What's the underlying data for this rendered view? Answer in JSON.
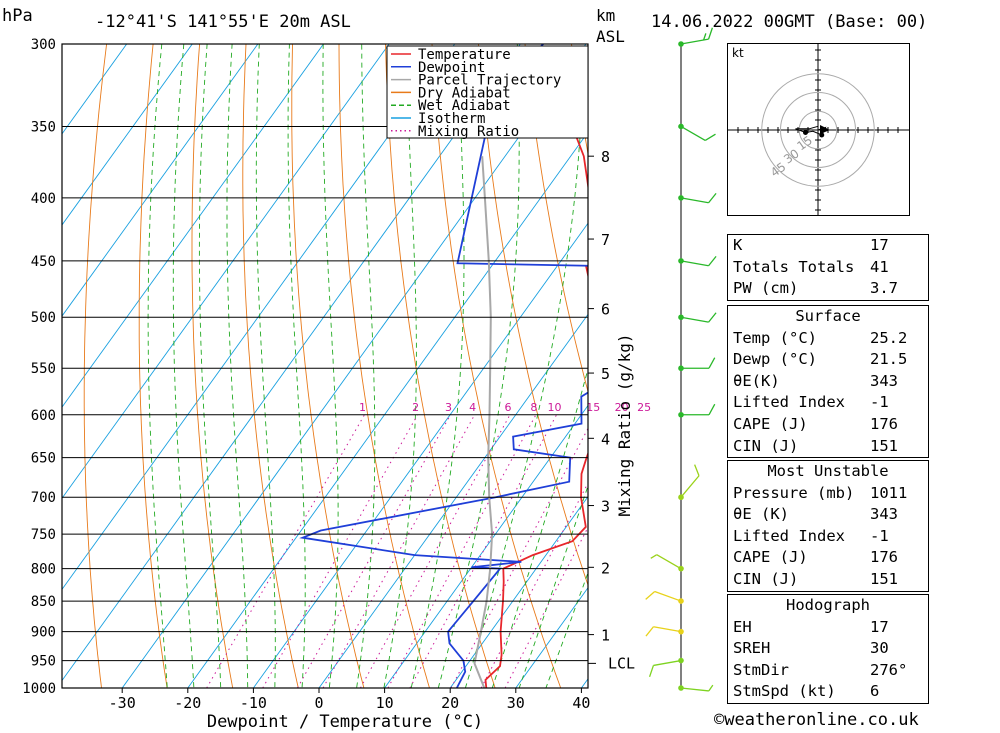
{
  "header": {
    "p_unit": "hPa",
    "location": "-12°41'S 141°55'E 20m ASL",
    "km_label": "km",
    "asl_label": "ASL",
    "datetime": "14.06.2022 00GMT (Base: 00)"
  },
  "legend": [
    "Temperature",
    "Dewpoint",
    "Parcel Trajectory",
    "Dry Adiabat",
    "Wet Adiabat",
    "Isotherm",
    "Mixing Ratio"
  ],
  "colors": {
    "temperature": "#e8262b",
    "dewpoint": "#1f3fd8",
    "parcel": "#a8a8a8",
    "dry_adiabat": "#e87a1a",
    "wet_adiabat": "#22aa22",
    "isotherm": "#19a0e0",
    "mixing_ratio": "#cc1a99"
  },
  "chart_data": {
    "type": "line",
    "title": "-12°41'S 141°55'E 20m ASL",
    "xlabel": "Dewpoint / Temperature (°C)",
    "ylabel": "hPa",
    "right_label": "Mixing Ratio (g/kg)",
    "x_ticks": [
      -30,
      -20,
      -10,
      0,
      10,
      20,
      30,
      40
    ],
    "p_ticks": [
      300,
      350,
      400,
      450,
      500,
      550,
      600,
      650,
      700,
      750,
      800,
      850,
      900,
      950,
      1000
    ],
    "km_ticks": [
      {
        "km": "1",
        "p": 905
      },
      {
        "km": "2",
        "p": 798
      },
      {
        "km": "3",
        "p": 711
      },
      {
        "km": "4",
        "p": 627
      },
      {
        "km": "5",
        "p": 555
      },
      {
        "km": "6",
        "p": 492
      },
      {
        "km": "7",
        "p": 432
      },
      {
        "km": "8",
        "p": 370
      }
    ],
    "lcl_label": "LCL",
    "lcl_p": 955,
    "mixing_ratio_labels": [
      "1",
      "2",
      "3",
      "4",
      "6",
      "8",
      "10",
      "15",
      "20",
      "25"
    ],
    "series": [
      {
        "name": "Temperature",
        "points": [
          [
            1000,
            25.5
          ],
          [
            985,
            24.5
          ],
          [
            960,
            25.2
          ],
          [
            940,
            24.2
          ],
          [
            900,
            21.5
          ],
          [
            850,
            18.5
          ],
          [
            820,
            16.5
          ],
          [
            800,
            15.0
          ],
          [
            780,
            18.0
          ],
          [
            760,
            22.5
          ],
          [
            740,
            23.0
          ],
          [
            700,
            19.0
          ],
          [
            670,
            16.5
          ],
          [
            650,
            15.5
          ],
          [
            620,
            14.2
          ],
          [
            600,
            13.0
          ],
          [
            580,
            10.5
          ],
          [
            550,
            6.5
          ],
          [
            500,
            1.0
          ],
          [
            470,
            -3.0
          ],
          [
            455,
            -5.5
          ],
          [
            450,
            -4.5
          ],
          [
            430,
            -7.5
          ],
          [
            400,
            -12.5
          ],
          [
            370,
            -18.0
          ],
          [
            350,
            -23.0
          ],
          [
            330,
            -22.5
          ],
          [
            300,
            -29.0
          ]
        ]
      },
      {
        "name": "Dewpoint",
        "points": [
          [
            1000,
            21.0
          ],
          [
            970,
            20.5
          ],
          [
            950,
            19.0
          ],
          [
            920,
            15.0
          ],
          [
            900,
            13.5
          ],
          [
            850,
            14.0
          ],
          [
            800,
            14.5
          ],
          [
            798,
            10.0
          ],
          [
            790,
            17.0
          ],
          [
            780,
            0.0
          ],
          [
            755,
            -19.0
          ],
          [
            745,
            -17.0
          ],
          [
            700,
            6.0
          ],
          [
            680,
            15.5
          ],
          [
            650,
            13.0
          ],
          [
            640,
            3.5
          ],
          [
            625,
            2.0
          ],
          [
            610,
            11.0
          ],
          [
            580,
            8.0
          ],
          [
            540,
            13.5
          ],
          [
            500,
            4.5
          ],
          [
            470,
            0.0
          ],
          [
            455,
            3.0
          ],
          [
            452,
            -25.5
          ],
          [
            350,
            -36.0
          ],
          [
            340,
            -39.0
          ],
          [
            300,
            -36.5
          ]
        ]
      },
      {
        "name": "Parcel Trajectory",
        "points": [
          [
            1000,
            25.2
          ],
          [
            955,
            21.0
          ],
          [
            900,
            18.5
          ],
          [
            850,
            16.0
          ],
          [
            800,
            13.0
          ],
          [
            750,
            9.5
          ],
          [
            700,
            5.0
          ],
          [
            650,
            0.5
          ],
          [
            600,
            -4.0
          ],
          [
            550,
            -9.0
          ],
          [
            500,
            -14.5
          ],
          [
            450,
            -21.0
          ],
          [
            400,
            -28.5
          ],
          [
            370,
            -33.5
          ]
        ]
      }
    ],
    "wind_barbs": [
      {
        "p": 1000,
        "dir": 276,
        "kt": 5
      },
      {
        "p": 950,
        "dir": 80,
        "kt": 10
      },
      {
        "p": 900,
        "dir": 100,
        "kt": 10
      },
      {
        "p": 850,
        "dir": 110,
        "kt": 10
      },
      {
        "p": 800,
        "dir": 120,
        "kt": 5
      },
      {
        "p": 700,
        "dir": 220,
        "kt": 10
      },
      {
        "p": 600,
        "dir": 270,
        "kt": 10
      },
      {
        "p": 550,
        "dir": 270,
        "kt": 10
      },
      {
        "p": 500,
        "dir": 280,
        "kt": 10
      },
      {
        "p": 450,
        "dir": 280,
        "kt": 10
      },
      {
        "p": 400,
        "dir": 280,
        "kt": 10
      },
      {
        "p": 350,
        "dir": 300,
        "kt": 10
      },
      {
        "p": 300,
        "dir": 260,
        "kt": 15
      }
    ],
    "hodograph": {
      "unit_label": "kt",
      "rings": [
        15,
        30,
        45
      ],
      "ring_labels": [
        "15",
        "30",
        "45"
      ],
      "trace": [
        [
          0,
          0
        ],
        [
          6,
          -2
        ],
        [
          3,
          4
        ],
        [
          -4,
          1
        ],
        [
          -10,
          2
        ],
        [
          -18,
          -1
        ],
        [
          -7,
          -1
        ],
        [
          0,
          -3
        ]
      ]
    }
  },
  "indices": [
    {
      "label": "K",
      "value": "17"
    },
    {
      "label": "Totals Totals",
      "value": "41"
    },
    {
      "label": "PW (cm)",
      "value": "3.7"
    }
  ],
  "surface": {
    "title": "Surface",
    "rows": [
      {
        "label": "Temp (°C)",
        "value": "25.2"
      },
      {
        "label": "Dewp (°C)",
        "value": "21.5"
      },
      {
        "label": "θE(K)",
        "value": "343"
      },
      {
        "label": "Lifted Index",
        "value": "-1"
      },
      {
        "label": "CAPE (J)",
        "value": "176"
      },
      {
        "label": "CIN (J)",
        "value": "151"
      }
    ]
  },
  "most_unstable": {
    "title": "Most Unstable",
    "rows": [
      {
        "label": "Pressure (mb)",
        "value": "1011"
      },
      {
        "label": "θE (K)",
        "value": "343"
      },
      {
        "label": "Lifted Index",
        "value": "-1"
      },
      {
        "label": "CAPE (J)",
        "value": "176"
      },
      {
        "label": "CIN (J)",
        "value": "151"
      }
    ]
  },
  "hodograph_table": {
    "title": "Hodograph",
    "rows": [
      {
        "label": "EH",
        "value": "17"
      },
      {
        "label": "SREH",
        "value": "30"
      },
      {
        "label": "StmDir",
        "value": "276°"
      },
      {
        "label": "StmSpd (kt)",
        "value": "6"
      }
    ]
  },
  "footer": {
    "copyright": "©weatheronline.co.uk"
  }
}
